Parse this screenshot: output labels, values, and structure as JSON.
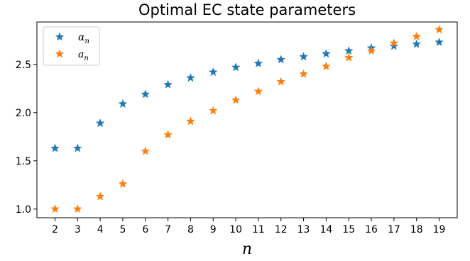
{
  "chart_data": {
    "type": "scatter",
    "title": "Optimal EC state parameters",
    "xlabel": "n",
    "ylabel": "",
    "marker": "star",
    "legend_position": "top-left",
    "grid": false,
    "xlim": [
      1.2,
      19.8
    ],
    "ylim": [
      0.91,
      2.94
    ],
    "xticks": [
      2,
      3,
      4,
      5,
      6,
      7,
      8,
      9,
      10,
      11,
      12,
      13,
      14,
      15,
      16,
      17,
      18,
      19
    ],
    "yticks": [
      1.0,
      1.5,
      2.0,
      2.5
    ],
    "ytick_labels": [
      "1.0",
      "1.5",
      "2.0",
      "2.5"
    ],
    "x": [
      2,
      3,
      4,
      5,
      6,
      7,
      8,
      9,
      10,
      11,
      12,
      13,
      14,
      15,
      16,
      17,
      18,
      19
    ],
    "series": [
      {
        "name_base": "α",
        "name_sub": "n",
        "color": "#1f77b4",
        "values": [
          1.63,
          1.63,
          1.89,
          2.09,
          2.19,
          2.29,
          2.36,
          2.42,
          2.47,
          2.51,
          2.55,
          2.58,
          2.61,
          2.64,
          2.67,
          2.69,
          2.71,
          2.73
        ]
      },
      {
        "name_base": "a",
        "name_sub": "n",
        "color": "#ff7f0e",
        "values": [
          1.0,
          1.0,
          1.13,
          1.26,
          1.6,
          1.77,
          1.91,
          2.02,
          2.13,
          2.22,
          2.32,
          2.4,
          2.48,
          2.57,
          2.64,
          2.72,
          2.79,
          2.86
        ]
      }
    ]
  }
}
